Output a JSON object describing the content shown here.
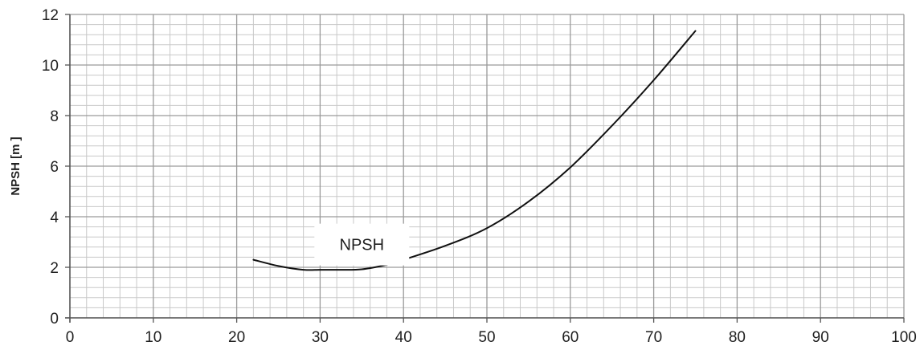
{
  "chart_data": {
    "type": "line",
    "title": "",
    "xlabel": "",
    "ylabel": "NPSH [m ]",
    "xlim": [
      0,
      100
    ],
    "ylim": [
      0,
      12
    ],
    "x_ticks": [
      "0",
      "10",
      "20",
      "30",
      "40",
      "50",
      "60",
      "70",
      "80",
      "90",
      "100"
    ],
    "y_ticks": [
      "0",
      "2",
      "4",
      "6",
      "8",
      "10",
      "12"
    ],
    "grid": true,
    "minor_grid": true,
    "legend": "none",
    "annotations": [
      {
        "text": "NPSH",
        "x": 35,
        "y": 2.9
      }
    ],
    "series": [
      {
        "name": "NPSH",
        "color": "#111111",
        "x": [
          22,
          25,
          28,
          30,
          32,
          35,
          38,
          40,
          45,
          50,
          55,
          60,
          65,
          70,
          75
        ],
        "y": [
          2.3,
          2.05,
          1.9,
          1.9,
          1.9,
          1.92,
          2.1,
          2.3,
          2.85,
          3.55,
          4.6,
          5.95,
          7.6,
          9.4,
          11.35
        ]
      }
    ]
  },
  "colors": {
    "major_grid": "#9a9a9a",
    "minor_grid": "#c8c8c8",
    "axis": "#555555",
    "line": "#111111"
  }
}
